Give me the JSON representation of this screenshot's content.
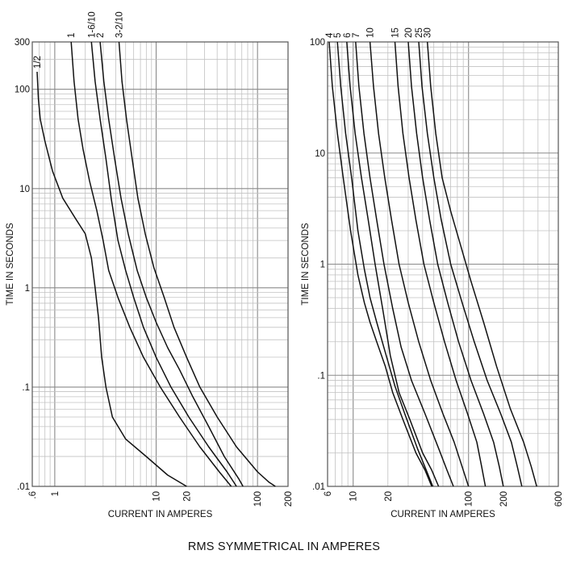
{
  "footer": "RMS SYMMETRICAL IN AMPERES",
  "chart_data": [
    {
      "type": "line",
      "title": "",
      "xlabel": "CURRENT IN AMPERES",
      "ylabel": "TIME IN SECONDS",
      "x_scale": "log",
      "y_scale": "log",
      "xlim": [
        0.6,
        200
      ],
      "ylim": [
        0.01,
        300
      ],
      "grid": true,
      "x_tick_labels": [
        {
          "value": 0.6,
          "label": ".6"
        },
        {
          "value": 1,
          "label": "1"
        },
        {
          "value": 10,
          "label": "10"
        },
        {
          "value": 20,
          "label": "20"
        },
        {
          "value": 100,
          "label": "100"
        },
        {
          "value": 200,
          "label": "200"
        }
      ],
      "y_tick_labels": [
        {
          "value": 0.01,
          "label": ".01"
        },
        {
          "value": 0.1,
          "label": ".1"
        },
        {
          "value": 1,
          "label": "1"
        },
        {
          "value": 10,
          "label": "10"
        },
        {
          "value": 100,
          "label": "100"
        },
        {
          "value": 300,
          "label": "300"
        }
      ],
      "series": [
        {
          "name": "1/2",
          "points": [
            [
              0.67,
              150
            ],
            [
              0.69,
              80
            ],
            [
              0.72,
              50
            ],
            [
              0.8,
              30
            ],
            [
              0.95,
              15
            ],
            [
              1.2,
              8
            ],
            [
              1.6,
              5
            ],
            [
              2.0,
              3.5
            ],
            [
              2.3,
              2
            ],
            [
              2.5,
              1
            ],
            [
              2.7,
              0.5
            ],
            [
              2.9,
              0.2
            ],
            [
              3.2,
              0.1
            ],
            [
              3.7,
              0.05
            ],
            [
              5,
              0.03
            ],
            [
              8,
              0.02
            ],
            [
              13,
              0.013
            ],
            [
              20,
              0.01
            ]
          ]
        },
        {
          "name": "1",
          "points": [
            [
              1.45,
              300
            ],
            [
              1.55,
              120
            ],
            [
              1.7,
              50
            ],
            [
              1.9,
              25
            ],
            [
              2.2,
              12
            ],
            [
              2.6,
              6
            ],
            [
              3.0,
              3
            ],
            [
              3.4,
              1.5
            ],
            [
              4.2,
              0.8
            ],
            [
              5.5,
              0.4
            ],
            [
              7.5,
              0.2
            ],
            [
              11,
              0.1
            ],
            [
              17,
              0.05
            ],
            [
              27,
              0.025
            ],
            [
              42,
              0.014
            ],
            [
              55,
              0.01
            ]
          ]
        },
        {
          "name": "1-6/10",
          "points": [
            [
              2.3,
              300
            ],
            [
              2.5,
              120
            ],
            [
              2.8,
              50
            ],
            [
              3.2,
              20
            ],
            [
              3.6,
              8
            ],
            [
              4.2,
              3
            ],
            [
              5.0,
              1.5
            ],
            [
              6.0,
              0.8
            ],
            [
              7.5,
              0.4
            ],
            [
              10,
              0.2
            ],
            [
              14,
              0.1
            ],
            [
              21,
              0.05
            ],
            [
              33,
              0.025
            ],
            [
              50,
              0.014
            ],
            [
              62,
              0.01
            ]
          ]
        },
        {
          "name": "2",
          "points": [
            [
              2.8,
              300
            ],
            [
              3.05,
              120
            ],
            [
              3.4,
              50
            ],
            [
              3.9,
              20
            ],
            [
              4.5,
              8
            ],
            [
              5.3,
              3.5
            ],
            [
              6.5,
              1.5
            ],
            [
              8,
              0.8
            ],
            [
              10,
              0.45
            ],
            [
              13,
              0.25
            ],
            [
              17,
              0.15
            ],
            [
              23,
              0.08
            ],
            [
              33,
              0.04
            ],
            [
              47,
              0.02
            ],
            [
              65,
              0.012
            ],
            [
              72,
              0.01
            ]
          ]
        },
        {
          "name": "3-2/10",
          "points": [
            [
              4.3,
              300
            ],
            [
              4.6,
              120
            ],
            [
              5.1,
              50
            ],
            [
              5.8,
              20
            ],
            [
              6.6,
              8
            ],
            [
              7.8,
              3.5
            ],
            [
              9.5,
              1.6
            ],
            [
              12,
              0.8
            ],
            [
              15,
              0.4
            ],
            [
              20,
              0.2
            ],
            [
              27,
              0.1
            ],
            [
              40,
              0.05
            ],
            [
              62,
              0.025
            ],
            [
              100,
              0.014
            ],
            [
              130,
              0.011
            ],
            [
              150,
              0.01
            ]
          ]
        }
      ]
    },
    {
      "type": "line",
      "title": "",
      "xlabel": "CURRENT IN AMPERES",
      "ylabel": "TIME IN SECONDS",
      "x_scale": "log",
      "y_scale": "log",
      "xlim": [
        6,
        600
      ],
      "ylim": [
        0.01,
        100
      ],
      "grid": true,
      "x_tick_labels": [
        {
          "value": 6,
          "label": "6"
        },
        {
          "value": 10,
          "label": "10"
        },
        {
          "value": 20,
          "label": "20"
        },
        {
          "value": 100,
          "label": "100"
        },
        {
          "value": 200,
          "label": "200"
        },
        {
          "value": 600,
          "label": "600"
        }
      ],
      "y_tick_labels": [
        {
          "value": 0.01,
          "label": ".01"
        },
        {
          "value": 0.1,
          "label": ".1"
        },
        {
          "value": 1,
          "label": "1"
        },
        {
          "value": 10,
          "label": "10"
        },
        {
          "value": 100,
          "label": "100"
        }
      ],
      "series": [
        {
          "name": "4",
          "points": [
            [
              6.2,
              100
            ],
            [
              6.6,
              40
            ],
            [
              7.3,
              15
            ],
            [
              8.2,
              6
            ],
            [
              9.5,
              2
            ],
            [
              11,
              0.8
            ],
            [
              12.5,
              0.45
            ],
            [
              14,
              0.3
            ],
            [
              16,
              0.2
            ],
            [
              19,
              0.12
            ],
            [
              22,
              0.07
            ],
            [
              27,
              0.04
            ],
            [
              35,
              0.02
            ],
            [
              42,
              0.014
            ],
            [
              48,
              0.01
            ]
          ]
        },
        {
          "name": "5",
          "points": [
            [
              7.3,
              100
            ],
            [
              7.8,
              40
            ],
            [
              8.6,
              15
            ],
            [
              9.7,
              6
            ],
            [
              11,
              2
            ],
            [
              12.5,
              0.9
            ],
            [
              14,
              0.5
            ],
            [
              16,
              0.3
            ],
            [
              19,
              0.16
            ],
            [
              23,
              0.08
            ],
            [
              28,
              0.045
            ],
            [
              36,
              0.022
            ],
            [
              43,
              0.014
            ],
            [
              49,
              0.01
            ]
          ]
        },
        {
          "name": "6",
          "points": [
            [
              8.8,
              100
            ],
            [
              9.4,
              40
            ],
            [
              10.4,
              15
            ],
            [
              11.8,
              6
            ],
            [
              13.5,
              2.5
            ],
            [
              15.5,
              1
            ],
            [
              18,
              0.4
            ],
            [
              21,
              0.15
            ],
            [
              25,
              0.07
            ],
            [
              31,
              0.04
            ],
            [
              40,
              0.02
            ],
            [
              48,
              0.014
            ],
            [
              55,
              0.01
            ]
          ]
        },
        {
          "name": "7",
          "points": [
            [
              10.5,
              100
            ],
            [
              11.2,
              40
            ],
            [
              12.4,
              15
            ],
            [
              14,
              6
            ],
            [
              16,
              2.5
            ],
            [
              18.5,
              1
            ],
            [
              22,
              0.4
            ],
            [
              26,
              0.18
            ],
            [
              32,
              0.09
            ],
            [
              42,
              0.045
            ],
            [
              55,
              0.022
            ],
            [
              65,
              0.014
            ],
            [
              74,
              0.01
            ]
          ]
        },
        {
          "name": "10",
          "points": [
            [
              14,
              100
            ],
            [
              15,
              40
            ],
            [
              16.6,
              15
            ],
            [
              18.8,
              6
            ],
            [
              21.5,
              2.5
            ],
            [
              25,
              1
            ],
            [
              30,
              0.45
            ],
            [
              37,
              0.2
            ],
            [
              47,
              0.09
            ],
            [
              60,
              0.045
            ],
            [
              75,
              0.025
            ],
            [
              88,
              0.015
            ],
            [
              100,
              0.01
            ]
          ]
        },
        {
          "name": "15",
          "points": [
            [
              23,
              100
            ],
            [
              24.5,
              40
            ],
            [
              27,
              15
            ],
            [
              30.5,
              6
            ],
            [
              35,
              2.5
            ],
            [
              41,
              1
            ],
            [
              50,
              0.45
            ],
            [
              62,
              0.2
            ],
            [
              78,
              0.09
            ],
            [
              98,
              0.045
            ],
            [
              118,
              0.025
            ],
            [
              130,
              0.015
            ],
            [
              140,
              0.01
            ]
          ]
        },
        {
          "name": "20",
          "points": [
            [
              30,
              100
            ],
            [
              32,
              40
            ],
            [
              35.5,
              15
            ],
            [
              40,
              6
            ],
            [
              46,
              2.5
            ],
            [
              54,
              1
            ],
            [
              66,
              0.45
            ],
            [
              82,
              0.2
            ],
            [
              105,
              0.09
            ],
            [
              135,
              0.045
            ],
            [
              165,
              0.025
            ],
            [
              185,
              0.015
            ],
            [
              200,
              0.01
            ]
          ]
        },
        {
          "name": "25",
          "points": [
            [
              37,
              100
            ],
            [
              39.5,
              40
            ],
            [
              44,
              15
            ],
            [
              50,
              6
            ],
            [
              58,
              2.5
            ],
            [
              70,
              1
            ],
            [
              88,
              0.45
            ],
            [
              112,
              0.2
            ],
            [
              145,
              0.09
            ],
            [
              190,
              0.045
            ],
            [
              235,
              0.025
            ],
            [
              265,
              0.015
            ],
            [
              290,
              0.01
            ]
          ]
        },
        {
          "name": "30",
          "points": [
            [
              44,
              100
            ],
            [
              47,
              40
            ],
            [
              52,
              15
            ],
            [
              59,
              6
            ],
            [
              70,
              3
            ],
            [
              85,
              1.5
            ],
            [
              105,
              0.7
            ],
            [
              135,
              0.3
            ],
            [
              175,
              0.12
            ],
            [
              230,
              0.05
            ],
            [
              300,
              0.025
            ],
            [
              350,
              0.015
            ],
            [
              390,
              0.01
            ]
          ]
        }
      ]
    }
  ]
}
